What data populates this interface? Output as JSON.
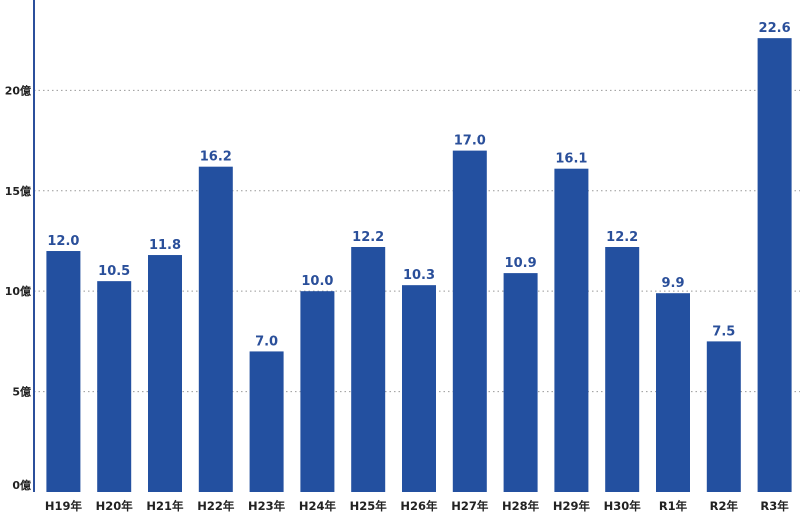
{
  "chart_data": {
    "type": "bar",
    "categories": [
      "H19年",
      "H20年",
      "H21年",
      "H22年",
      "H23年",
      "H24年",
      "H25年",
      "H26年",
      "H27年",
      "H28年",
      "H29年",
      "H30年",
      "R1年",
      "R2年",
      "R3年"
    ],
    "values": [
      12.0,
      10.5,
      11.8,
      16.2,
      7.0,
      10.0,
      12.2,
      10.3,
      17.0,
      10.9,
      16.1,
      12.2,
      9.9,
      7.5,
      22.6
    ],
    "value_labels": [
      "12.0",
      "10.5",
      "11.8",
      "16.2",
      "7.0",
      "10.0",
      "12.2",
      "10.3",
      "17.0",
      "10.9",
      "16.1",
      "12.2",
      "9.9",
      "7.5",
      "22.6"
    ],
    "y_ticks": [
      {
        "value": 0,
        "label": "0億"
      },
      {
        "value": 5,
        "label": "5億"
      },
      {
        "value": 10,
        "label": "10億"
      },
      {
        "value": 15,
        "label": "15億"
      },
      {
        "value": 20,
        "label": "20億"
      }
    ],
    "ylim": [
      0,
      24.5
    ],
    "grid": true,
    "colors": {
      "bar": "#2350a0",
      "label": "#2a4f9a",
      "axis": "#2b4f9b",
      "grid": "#999999"
    }
  }
}
